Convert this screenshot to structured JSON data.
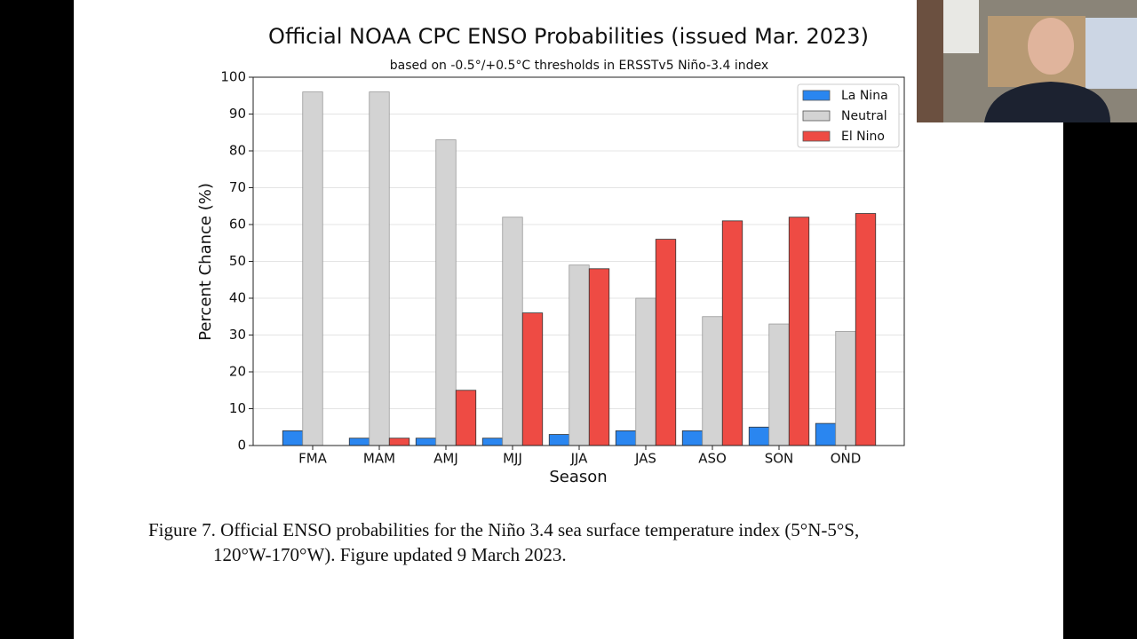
{
  "chart_data": {
    "type": "bar",
    "title": "Official NOAA CPC ENSO Probabilities (issued Mar. 2023)",
    "subtitle": "based on -0.5°/+0.5°C thresholds in ERSSTv5 Niño-3.4 index",
    "x_label": "Season",
    "y_label": "Percent Chance (%)",
    "categories": [
      "FMA",
      "MAM",
      "AMJ",
      "MJJ",
      "JJA",
      "JAS",
      "ASO",
      "SON",
      "OND"
    ],
    "series": [
      {
        "name": "La Nina",
        "color": "#2a86f0",
        "values": [
          4,
          2,
          2,
          2,
          3,
          4,
          4,
          5,
          6
        ]
      },
      {
        "name": "Neutral",
        "color": "#d3d3d3",
        "values": [
          96,
          96,
          83,
          62,
          49,
          40,
          35,
          33,
          31
        ]
      },
      {
        "name": "El Nino",
        "color": "#ee4b44",
        "values": [
          0,
          2,
          15,
          36,
          48,
          56,
          61,
          62,
          63
        ]
      }
    ],
    "ylim": [
      0,
      100
    ],
    "yticks": [
      0,
      10,
      20,
      30,
      40,
      50,
      60,
      70,
      80,
      90,
      100
    ],
    "grid": true,
    "legend": "upper right"
  },
  "caption": [
    "Figure 7. Official ENSO probabilities for the Niño 3.4 sea surface temperature index (5°N-5°S,",
    "120°W-170°W). Figure updated 9 March 2023."
  ]
}
